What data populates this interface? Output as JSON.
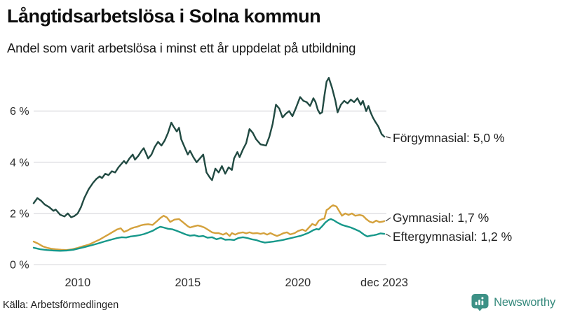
{
  "header": {
    "title": "Långtidsarbetslösa i Solna kommun",
    "subtitle": "Andel som varit arbetslösa i minst ett år uppdelat på utbildning"
  },
  "footer": {
    "source": "Källa: Arbetsförmedlingen",
    "brand": "Newsworthy",
    "brand_color": "#35897c",
    "icon_color": "#3d9186"
  },
  "chart_data": {
    "type": "line",
    "title": "Långtidsarbetslösa i Solna kommun",
    "subtitle": "Andel som varit arbetslösa i minst ett år uppdelat på utbildning",
    "x_domain": [
      2008.0,
      2023.92
    ],
    "ylim": [
      0,
      7.5
    ],
    "grid": true,
    "legend_position": "right-end-labels",
    "grid_color": "#e3e3e6",
    "text_color": "#2b2b2b",
    "yticks": [
      {
        "label": "0 %",
        "value": 0
      },
      {
        "label": "2 %",
        "value": 2
      },
      {
        "label": "4 %",
        "value": 4
      },
      {
        "label": "6 %",
        "value": 6
      }
    ],
    "xticks": [
      {
        "label": "2010",
        "year": 2010
      },
      {
        "label": "2015",
        "year": 2015
      },
      {
        "label": "2020",
        "year": 2020
      },
      {
        "label": "dec 2023",
        "year": 2023.92
      }
    ],
    "series": [
      {
        "name": "Förgymnasial",
        "end_label": "Förgymnasial: 5,0 %",
        "end_value": "5,0 %",
        "color": "#214a42",
        "points": [
          [
            2008.0,
            2.4
          ],
          [
            2008.17,
            2.6
          ],
          [
            2008.33,
            2.5
          ],
          [
            2008.5,
            2.35
          ],
          [
            2008.7,
            2.25
          ],
          [
            2008.9,
            2.1
          ],
          [
            2009.0,
            2.15
          ],
          [
            2009.2,
            1.95
          ],
          [
            2009.4,
            1.88
          ],
          [
            2009.55,
            2.0
          ],
          [
            2009.7,
            1.85
          ],
          [
            2009.85,
            1.9
          ],
          [
            2010.0,
            2.0
          ],
          [
            2010.15,
            2.25
          ],
          [
            2010.3,
            2.6
          ],
          [
            2010.5,
            2.95
          ],
          [
            2010.7,
            3.2
          ],
          [
            2010.85,
            3.35
          ],
          [
            2011.0,
            3.45
          ],
          [
            2011.1,
            3.38
          ],
          [
            2011.25,
            3.55
          ],
          [
            2011.4,
            3.5
          ],
          [
            2011.55,
            3.65
          ],
          [
            2011.7,
            3.6
          ],
          [
            2011.85,
            3.8
          ],
          [
            2012.0,
            3.95
          ],
          [
            2012.1,
            4.05
          ],
          [
            2012.2,
            3.95
          ],
          [
            2012.35,
            4.15
          ],
          [
            2012.5,
            4.3
          ],
          [
            2012.6,
            4.1
          ],
          [
            2012.75,
            4.25
          ],
          [
            2012.9,
            4.45
          ],
          [
            2013.0,
            4.55
          ],
          [
            2013.1,
            4.35
          ],
          [
            2013.2,
            4.15
          ],
          [
            2013.35,
            4.3
          ],
          [
            2013.5,
            4.6
          ],
          [
            2013.65,
            4.8
          ],
          [
            2013.8,
            4.65
          ],
          [
            2013.95,
            4.85
          ],
          [
            2014.1,
            5.15
          ],
          [
            2014.25,
            5.55
          ],
          [
            2014.35,
            5.4
          ],
          [
            2014.5,
            5.2
          ],
          [
            2014.6,
            5.35
          ],
          [
            2014.7,
            4.9
          ],
          [
            2014.85,
            4.6
          ],
          [
            2015.0,
            4.3
          ],
          [
            2015.1,
            4.45
          ],
          [
            2015.25,
            4.2
          ],
          [
            2015.4,
            4.0
          ],
          [
            2015.55,
            4.15
          ],
          [
            2015.7,
            4.3
          ],
          [
            2015.85,
            3.6
          ],
          [
            2016.0,
            3.4
          ],
          [
            2016.1,
            3.3
          ],
          [
            2016.25,
            3.75
          ],
          [
            2016.4,
            3.6
          ],
          [
            2016.55,
            3.85
          ],
          [
            2016.7,
            3.55
          ],
          [
            2016.85,
            3.8
          ],
          [
            2017.0,
            3.7
          ],
          [
            2017.1,
            4.15
          ],
          [
            2017.25,
            4.4
          ],
          [
            2017.35,
            4.2
          ],
          [
            2017.5,
            4.5
          ],
          [
            2017.65,
            4.75
          ],
          [
            2017.8,
            5.3
          ],
          [
            2017.95,
            5.15
          ],
          [
            2018.1,
            4.9
          ],
          [
            2018.3,
            4.7
          ],
          [
            2018.55,
            4.65
          ],
          [
            2018.7,
            5.0
          ],
          [
            2018.85,
            5.5
          ],
          [
            2019.0,
            6.25
          ],
          [
            2019.15,
            6.1
          ],
          [
            2019.3,
            5.75
          ],
          [
            2019.45,
            5.9
          ],
          [
            2019.6,
            6.0
          ],
          [
            2019.75,
            5.8
          ],
          [
            2019.9,
            6.1
          ],
          [
            2020.1,
            6.55
          ],
          [
            2020.25,
            6.4
          ],
          [
            2020.4,
            6.35
          ],
          [
            2020.55,
            6.2
          ],
          [
            2020.7,
            6.5
          ],
          [
            2020.8,
            6.35
          ],
          [
            2020.9,
            6.05
          ],
          [
            2021.0,
            5.9
          ],
          [
            2021.1,
            5.95
          ],
          [
            2021.2,
            6.6
          ],
          [
            2021.3,
            7.15
          ],
          [
            2021.4,
            7.3
          ],
          [
            2021.55,
            6.9
          ],
          [
            2021.7,
            6.4
          ],
          [
            2021.8,
            5.95
          ],
          [
            2021.95,
            6.25
          ],
          [
            2022.1,
            6.4
          ],
          [
            2022.25,
            6.3
          ],
          [
            2022.4,
            6.45
          ],
          [
            2022.55,
            6.35
          ],
          [
            2022.7,
            6.5
          ],
          [
            2022.85,
            6.25
          ],
          [
            2022.95,
            6.4
          ],
          [
            2023.1,
            6.0
          ],
          [
            2023.2,
            6.2
          ],
          [
            2023.3,
            5.95
          ],
          [
            2023.4,
            5.75
          ],
          [
            2023.5,
            5.6
          ],
          [
            2023.65,
            5.4
          ],
          [
            2023.8,
            5.1
          ],
          [
            2023.92,
            5.0
          ]
        ]
      },
      {
        "name": "Gymnasial",
        "end_label": "Gymnasial: 1,7 %",
        "end_value": "1,7 %",
        "color": "#d4a13c",
        "points": [
          [
            2008.0,
            0.9
          ],
          [
            2008.2,
            0.82
          ],
          [
            2008.4,
            0.72
          ],
          [
            2008.6,
            0.66
          ],
          [
            2008.8,
            0.62
          ],
          [
            2009.0,
            0.6
          ],
          [
            2009.25,
            0.58
          ],
          [
            2009.5,
            0.57
          ],
          [
            2009.75,
            0.6
          ],
          [
            2010.0,
            0.65
          ],
          [
            2010.25,
            0.72
          ],
          [
            2010.5,
            0.78
          ],
          [
            2010.75,
            0.88
          ],
          [
            2011.0,
            0.98
          ],
          [
            2011.2,
            1.08
          ],
          [
            2011.4,
            1.18
          ],
          [
            2011.6,
            1.28
          ],
          [
            2011.8,
            1.38
          ],
          [
            2011.95,
            1.42
          ],
          [
            2012.1,
            1.28
          ],
          [
            2012.25,
            1.33
          ],
          [
            2012.4,
            1.4
          ],
          [
            2012.55,
            1.45
          ],
          [
            2012.7,
            1.48
          ],
          [
            2012.85,
            1.53
          ],
          [
            2013.0,
            1.56
          ],
          [
            2013.2,
            1.58
          ],
          [
            2013.4,
            1.55
          ],
          [
            2013.6,
            1.7
          ],
          [
            2013.75,
            1.82
          ],
          [
            2013.9,
            1.91
          ],
          [
            2014.05,
            1.84
          ],
          [
            2014.2,
            1.67
          ],
          [
            2014.4,
            1.76
          ],
          [
            2014.6,
            1.78
          ],
          [
            2014.8,
            1.64
          ],
          [
            2015.0,
            1.5
          ],
          [
            2015.1,
            1.45
          ],
          [
            2015.3,
            1.5
          ],
          [
            2015.45,
            1.53
          ],
          [
            2015.6,
            1.5
          ],
          [
            2015.75,
            1.45
          ],
          [
            2015.9,
            1.37
          ],
          [
            2016.1,
            1.26
          ],
          [
            2016.25,
            1.23
          ],
          [
            2016.4,
            1.23
          ],
          [
            2016.6,
            1.17
          ],
          [
            2016.75,
            1.23
          ],
          [
            2016.9,
            1.12
          ],
          [
            2017.0,
            1.23
          ],
          [
            2017.15,
            1.17
          ],
          [
            2017.3,
            1.23
          ],
          [
            2017.5,
            1.26
          ],
          [
            2017.65,
            1.22
          ],
          [
            2017.8,
            1.26
          ],
          [
            2017.95,
            1.22
          ],
          [
            2018.15,
            1.23
          ],
          [
            2018.3,
            1.2
          ],
          [
            2018.45,
            1.23
          ],
          [
            2018.6,
            1.17
          ],
          [
            2018.75,
            1.23
          ],
          [
            2018.9,
            1.17
          ],
          [
            2019.05,
            1.12
          ],
          [
            2019.2,
            1.17
          ],
          [
            2019.35,
            1.23
          ],
          [
            2019.5,
            1.26
          ],
          [
            2019.65,
            1.18
          ],
          [
            2019.85,
            1.23
          ],
          [
            2020.0,
            1.31
          ],
          [
            2020.2,
            1.37
          ],
          [
            2020.35,
            1.31
          ],
          [
            2020.5,
            1.45
          ],
          [
            2020.65,
            1.59
          ],
          [
            2020.8,
            1.53
          ],
          [
            2020.95,
            1.72
          ],
          [
            2021.1,
            1.78
          ],
          [
            2021.2,
            1.8
          ],
          [
            2021.3,
            2.13
          ],
          [
            2021.4,
            2.19
          ],
          [
            2021.5,
            2.27
          ],
          [
            2021.6,
            2.32
          ],
          [
            2021.75,
            2.27
          ],
          [
            2021.9,
            2.05
          ],
          [
            2022.0,
            1.91
          ],
          [
            2022.15,
            2.0
          ],
          [
            2022.3,
            1.94
          ],
          [
            2022.45,
            2.0
          ],
          [
            2022.6,
            1.91
          ],
          [
            2022.8,
            1.94
          ],
          [
            2022.95,
            1.91
          ],
          [
            2023.1,
            1.78
          ],
          [
            2023.25,
            1.68
          ],
          [
            2023.4,
            1.64
          ],
          [
            2023.55,
            1.72
          ],
          [
            2023.7,
            1.66
          ],
          [
            2023.85,
            1.68
          ],
          [
            2023.92,
            1.7
          ]
        ]
      },
      {
        "name": "Eftergymnasial",
        "end_label": "Eftergymnasial: 1,2 %",
        "end_value": "1,2 %",
        "color": "#17988a",
        "points": [
          [
            2008.0,
            0.66
          ],
          [
            2008.3,
            0.6
          ],
          [
            2008.6,
            0.57
          ],
          [
            2008.9,
            0.55
          ],
          [
            2009.2,
            0.54
          ],
          [
            2009.5,
            0.55
          ],
          [
            2009.8,
            0.58
          ],
          [
            2010.0,
            0.62
          ],
          [
            2010.3,
            0.68
          ],
          [
            2010.6,
            0.75
          ],
          [
            2010.9,
            0.82
          ],
          [
            2011.2,
            0.9
          ],
          [
            2011.5,
            0.97
          ],
          [
            2011.8,
            1.04
          ],
          [
            2012.0,
            1.07
          ],
          [
            2012.2,
            1.06
          ],
          [
            2012.4,
            1.1
          ],
          [
            2012.6,
            1.12
          ],
          [
            2012.8,
            1.15
          ],
          [
            2013.0,
            1.19
          ],
          [
            2013.2,
            1.25
          ],
          [
            2013.4,
            1.32
          ],
          [
            2013.6,
            1.42
          ],
          [
            2013.75,
            1.48
          ],
          [
            2013.9,
            1.45
          ],
          [
            2014.1,
            1.4
          ],
          [
            2014.3,
            1.38
          ],
          [
            2014.5,
            1.32
          ],
          [
            2014.7,
            1.25
          ],
          [
            2014.9,
            1.18
          ],
          [
            2015.1,
            1.13
          ],
          [
            2015.3,
            1.15
          ],
          [
            2015.5,
            1.1
          ],
          [
            2015.7,
            1.12
          ],
          [
            2015.9,
            1.05
          ],
          [
            2016.1,
            1.07
          ],
          [
            2016.3,
            0.99
          ],
          [
            2016.5,
            1.04
          ],
          [
            2016.7,
            0.97
          ],
          [
            2016.9,
            0.98
          ],
          [
            2017.1,
            0.96
          ],
          [
            2017.3,
            1.04
          ],
          [
            2017.5,
            1.07
          ],
          [
            2017.7,
            1.04
          ],
          [
            2017.9,
            0.99
          ],
          [
            2018.1,
            0.96
          ],
          [
            2018.3,
            0.9
          ],
          [
            2018.5,
            0.86
          ],
          [
            2018.7,
            0.88
          ],
          [
            2018.9,
            0.9
          ],
          [
            2019.1,
            0.93
          ],
          [
            2019.3,
            0.96
          ],
          [
            2019.5,
            1.0
          ],
          [
            2019.7,
            1.04
          ],
          [
            2019.9,
            1.08
          ],
          [
            2020.1,
            1.12
          ],
          [
            2020.3,
            1.18
          ],
          [
            2020.5,
            1.25
          ],
          [
            2020.7,
            1.35
          ],
          [
            2020.85,
            1.39
          ],
          [
            2020.95,
            1.37
          ],
          [
            2021.1,
            1.5
          ],
          [
            2021.25,
            1.65
          ],
          [
            2021.4,
            1.75
          ],
          [
            2021.5,
            1.78
          ],
          [
            2021.65,
            1.72
          ],
          [
            2021.8,
            1.64
          ],
          [
            2022.0,
            1.55
          ],
          [
            2022.2,
            1.5
          ],
          [
            2022.4,
            1.45
          ],
          [
            2022.6,
            1.38
          ],
          [
            2022.8,
            1.3
          ],
          [
            2023.0,
            1.17
          ],
          [
            2023.15,
            1.1
          ],
          [
            2023.3,
            1.13
          ],
          [
            2023.45,
            1.15
          ],
          [
            2023.6,
            1.18
          ],
          [
            2023.75,
            1.22
          ],
          [
            2023.92,
            1.2
          ]
        ]
      }
    ]
  }
}
